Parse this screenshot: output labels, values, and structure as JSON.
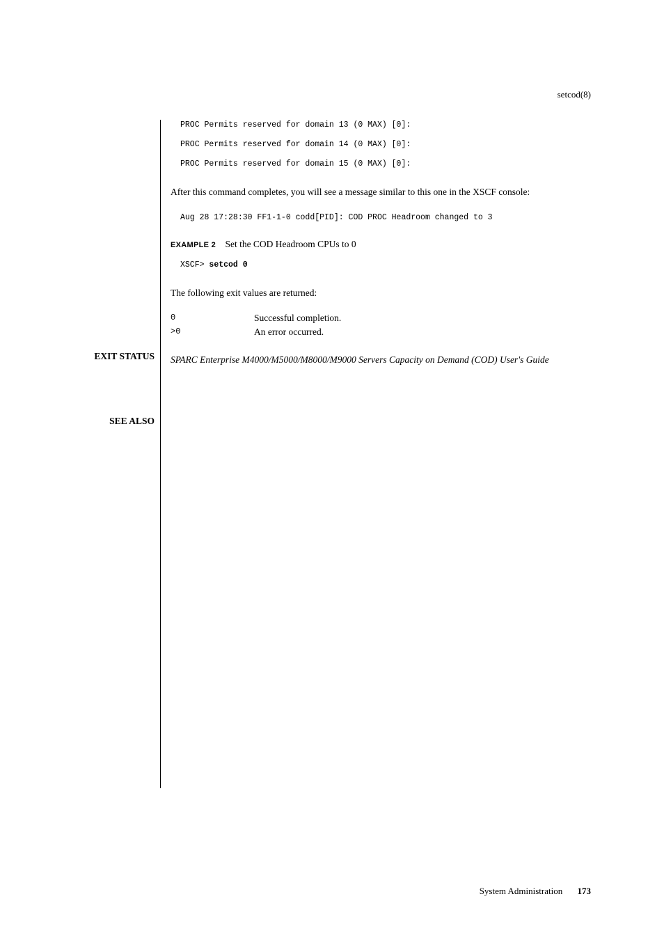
{
  "header": {
    "command": "setcod(8)"
  },
  "code": {
    "line1": "PROC Permits reserved for domain 13 (0 MAX) [0]:",
    "line2": "PROC Permits reserved for domain 14 (0 MAX) [0]:",
    "line3": "PROC Permits reserved for domain 15 (0 MAX) [0]:",
    "after_note": "After this command completes, you will see a message similar to this one in the XSCF console:",
    "aug_line": "Aug 28 17:28:30 FF1-1-0 codd[PID]: COD PROC Headroom changed to 3",
    "example2_label": "EXAMPLE 2",
    "example2_text": "Set the COD Headroom CPUs to 0",
    "xscf_prompt": "XSCF> ",
    "xscf_cmd": "setcod 0"
  },
  "exit": {
    "label": "EXIT STATUS",
    "intro": "The following exit values are returned:",
    "rows": [
      {
        "code": "0",
        "desc": "Successful completion."
      },
      {
        "code": ">0",
        "desc": "An error occurred."
      }
    ]
  },
  "seealso": {
    "label": "SEE ALSO",
    "text": "SPARC Enterprise M4000/M5000/M8000/M9000 Servers Capacity on Demand (COD) User's Guide"
  },
  "footer": {
    "text": "System Administration",
    "page": "173"
  }
}
